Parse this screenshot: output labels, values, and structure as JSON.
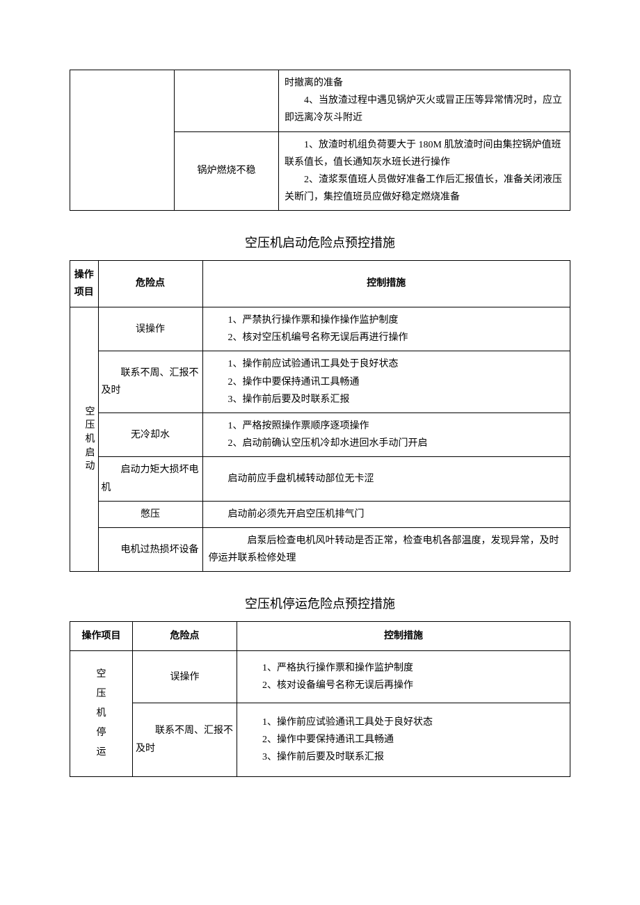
{
  "table1": {
    "row1": {
      "measures": [
        "时撤离的准备",
        "　　4、当放渣过程中遇见锅炉灭火或冒正压等异常情况时，应立即远离冷灰斗附近"
      ]
    },
    "row2": {
      "risk": "锅炉燃烧不稳",
      "measures": [
        "　　1、放渣时机组负荷要大于 180M 肌放渣时间由集控锅炉值班联系值长，值长通知灰水班长进行操作",
        "　　2、渣浆泵值班人员做好准备工作后汇报值长，准备关闭液压关断门，集控值班员应做好稳定燃烧准备"
      ]
    }
  },
  "section2": {
    "title": "空压机启动危险点预控措施",
    "headers": {
      "op": "操作项目",
      "risk": "危险点",
      "measure": "控制措施"
    },
    "rowspan_label": "空压机启动",
    "rows": [
      {
        "risk": "误操作",
        "measures": [
          "1、严禁执行操作票和操作操作监护制度",
          "2、核对空压机编号名称无误后再进行操作"
        ]
      },
      {
        "risk": "联系不周、汇报不及时",
        "measures": [
          "1、操作前应试验通讯工具处于良好状态",
          "2、操作中要保持通讯工具畅通",
          "3、操作前后要及时联系汇报"
        ]
      },
      {
        "risk": "无冷却水",
        "measures": [
          "1、严格按照操作票顺序逐项操作",
          "2、启动前确认空压机冷却水进回水手动门开启"
        ]
      },
      {
        "risk": "启动力矩大损坏电机",
        "measures": [
          "启动前应手盘机械转动部位无卡涩"
        ]
      },
      {
        "risk": "憋压",
        "measures": [
          "启动前必须先开启空压机排气门"
        ]
      },
      {
        "risk": "电机过热损坏设备",
        "measures": [
          "　　启泵后检查电机风叶转动是否正常，检查电机各部温度，发现异常，及时停运并联系检修处理"
        ]
      }
    ]
  },
  "section3": {
    "title": "空压机停运危险点预控措施",
    "headers": {
      "op": "操作项目",
      "risk": "危险点",
      "measure": "控制措施"
    },
    "rowspan_label": "空压机停运",
    "rows": [
      {
        "risk": "误操作",
        "measures": [
          "1、严格执行操作票和操作监护制度",
          "2、核对设备编号名称无误后再操作"
        ]
      },
      {
        "risk": "联系不周、汇报不及时",
        "measures": [
          "1、操作前应试验通讯工具处于良好状态",
          "2、操作中要保持通讯工具畅通",
          "3、操作前后要及时联系汇报"
        ]
      }
    ]
  }
}
